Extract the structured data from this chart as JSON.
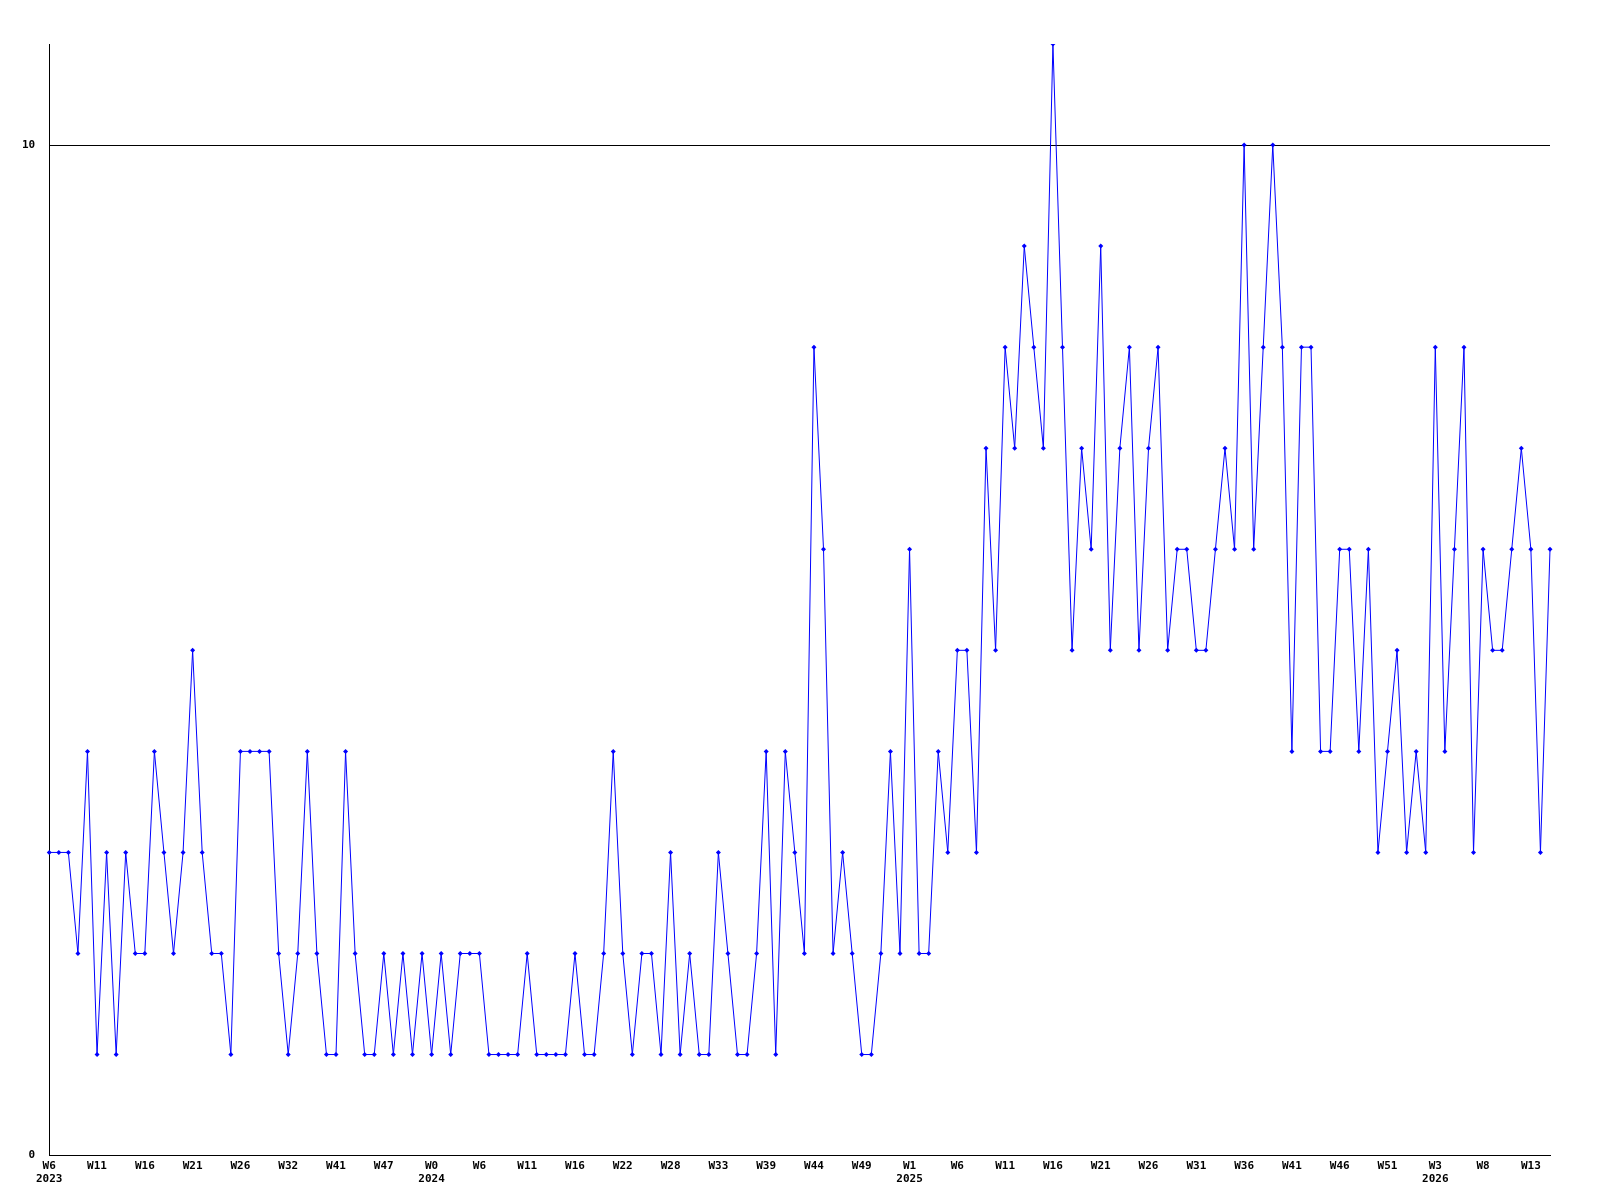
{
  "chart_data": {
    "type": "line",
    "categories": [
      "W6\n2023",
      null,
      null,
      null,
      null,
      "W11",
      null,
      null,
      null,
      null,
      "W16",
      null,
      null,
      null,
      null,
      "W21",
      null,
      null,
      null,
      null,
      "W26",
      null,
      null,
      null,
      null,
      "W32",
      null,
      null,
      null,
      null,
      "W41",
      null,
      null,
      null,
      null,
      "W47",
      null,
      null,
      null,
      null,
      "W0\n2024",
      null,
      null,
      null,
      null,
      "W6",
      null,
      null,
      null,
      null,
      "W11",
      null,
      null,
      null,
      null,
      "W16",
      null,
      null,
      null,
      null,
      "W22",
      null,
      null,
      null,
      null,
      "W28",
      null,
      null,
      null,
      null,
      "W33",
      null,
      null,
      null,
      null,
      "W39",
      null,
      null,
      null,
      null,
      "W44",
      null,
      null,
      null,
      null,
      "W49",
      null,
      null,
      null,
      null,
      "W1\n2025",
      null,
      null,
      null,
      null,
      "W6",
      null,
      null,
      null,
      null,
      "W11",
      null,
      null,
      null,
      null,
      "W16",
      null,
      null,
      null,
      null,
      "W21",
      null,
      null,
      null,
      null,
      "W26",
      null,
      null,
      null,
      null,
      "W31",
      null,
      null,
      null,
      null,
      "W36",
      null,
      null,
      null,
      null,
      "W41",
      null,
      null,
      null,
      null,
      "W46",
      null,
      null,
      null,
      null,
      "W51",
      null,
      null,
      null,
      null,
      "W3\n2026",
      null,
      null,
      null,
      null,
      "W8",
      null,
      null,
      null,
      null,
      "W13",
      null,
      null
    ],
    "series": [
      {
        "color": "#0000ff",
        "values": [
          3,
          3,
          3,
          2,
          4,
          1,
          3,
          1,
          3,
          2,
          2,
          4,
          3,
          2,
          3,
          5,
          3,
          2,
          2,
          1,
          4,
          4,
          4,
          4,
          2,
          1,
          2,
          4,
          2,
          1,
          1,
          4,
          2,
          1,
          1,
          2,
          1,
          2,
          1,
          2,
          1,
          2,
          1,
          2,
          2,
          2,
          1,
          1,
          1,
          1,
          2,
          1,
          1,
          1,
          1,
          2,
          1,
          1,
          2,
          4,
          2,
          1,
          2,
          2,
          1,
          3,
          1,
          2,
          1,
          1,
          3,
          2,
          1,
          1,
          2,
          4,
          1,
          4,
          3,
          2,
          8,
          6,
          2,
          3,
          2,
          1,
          1,
          2,
          4,
          2,
          6,
          2,
          2,
          4,
          3,
          5,
          5,
          3,
          7,
          5,
          8,
          7,
          9,
          8,
          7,
          11,
          8,
          5,
          7,
          6,
          9,
          5,
          7,
          8,
          5,
          7,
          8,
          5,
          6,
          6,
          5,
          5,
          6,
          7,
          6,
          10,
          6,
          8,
          10,
          8,
          4,
          8,
          8,
          4,
          4,
          6,
          6,
          4,
          6,
          3,
          4,
          5,
          3,
          4,
          3,
          8,
          4,
          6,
          8,
          3,
          6,
          5,
          5,
          6,
          7,
          6,
          3,
          6
        ]
      }
    ],
    "ylim": [
      0,
      11
    ],
    "yticks": [
      0,
      10
    ],
    "grid": "y",
    "legend": false,
    "marker": "diamond",
    "line_style": "solid"
  }
}
